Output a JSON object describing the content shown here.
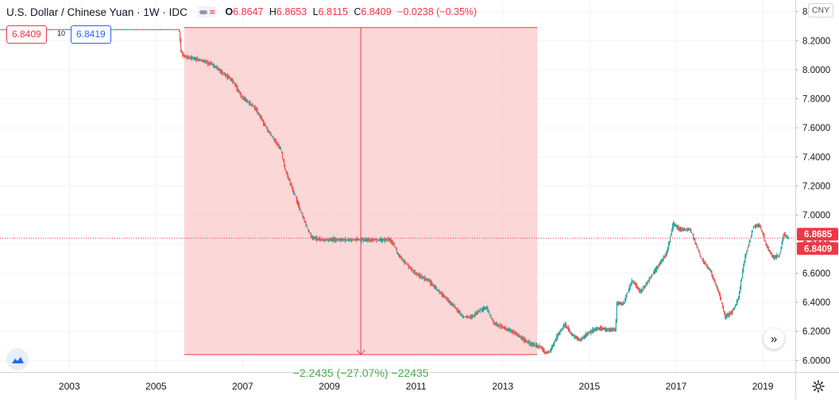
{
  "legend": {
    "symbol": "U.S. Dollar / Chinese Yuan · 1W · IDC",
    "o_key": "O",
    "o_val": "6.8647",
    "h_key": "H",
    "h_val": "6.8653",
    "l_key": "L",
    "l_val": "6.8115",
    "c_key": "C",
    "c_val": "6.8409",
    "change": "−0.0238 (−0.35%)",
    "wave_symbol": "≈"
  },
  "trade": {
    "sell_price": "6.8409",
    "quantity": "10",
    "buy_price": "6.8419"
  },
  "currency_label": "CNY",
  "measure_label": "−2.2435 (−27.07%) −22435",
  "scroll_glyph": "»",
  "icons": {
    "logo": "tradingview-cloud-icon",
    "settings": "gear-icon",
    "scroll": "scroll-to-realtime-icon"
  },
  "colors": {
    "up": "#26a69a",
    "down": "#ef5350",
    "measure_fill": "#fbd0d0",
    "measure_line": "#f23645",
    "measure_text": "#4caf50",
    "price_line": "#f23645"
  },
  "chart_data": {
    "type": "candlestick",
    "title": "U.S. Dollar / Chinese Yuan · 1W · IDC",
    "x_range": [
      2001.4,
      2019.75
    ],
    "y_range": [
      5.92,
      8.48
    ],
    "y_scale": "linear",
    "grid": true,
    "x_ticks": [
      "2003",
      "2005",
      "2007",
      "2009",
      "2011",
      "2013",
      "2015",
      "2017",
      "2019"
    ],
    "y_ticks": [
      "6.0000",
      "6.2000",
      "6.4000",
      "6.6000",
      "6.8000",
      "7.0000",
      "7.2000",
      "7.4000",
      "7.6000",
      "7.8000",
      "8.0000",
      "8.2000",
      "8.4000"
    ],
    "last_price": "6.8409",
    "last_price_value": 6.8409,
    "prev_close": "6.8685",
    "prev_close_value": 6.8685,
    "price_path": [
      [
        2001.4,
        8.277
      ],
      [
        2005.55,
        8.277
      ],
      [
        2005.6,
        8.11
      ],
      [
        2005.7,
        8.09
      ],
      [
        2006.0,
        8.07
      ],
      [
        2006.3,
        8.04
      ],
      [
        2006.5,
        7.99
      ],
      [
        2006.8,
        7.92
      ],
      [
        2007.0,
        7.81
      ],
      [
        2007.3,
        7.74
      ],
      [
        2007.6,
        7.58
      ],
      [
        2007.9,
        7.45
      ],
      [
        2008.0,
        7.31
      ],
      [
        2008.2,
        7.15
      ],
      [
        2008.45,
        6.95
      ],
      [
        2008.6,
        6.85
      ],
      [
        2008.8,
        6.83
      ],
      [
        2009.0,
        6.83
      ],
      [
        2009.5,
        6.83
      ],
      [
        2010.0,
        6.83
      ],
      [
        2010.4,
        6.83
      ],
      [
        2010.5,
        6.8
      ],
      [
        2010.6,
        6.73
      ],
      [
        2010.8,
        6.66
      ],
      [
        2011.0,
        6.6
      ],
      [
        2011.3,
        6.55
      ],
      [
        2011.6,
        6.46
      ],
      [
        2011.9,
        6.37
      ],
      [
        2012.1,
        6.3
      ],
      [
        2012.3,
        6.3
      ],
      [
        2012.5,
        6.35
      ],
      [
        2012.65,
        6.36
      ],
      [
        2012.8,
        6.26
      ],
      [
        2013.0,
        6.23
      ],
      [
        2013.3,
        6.19
      ],
      [
        2013.5,
        6.14
      ],
      [
        2013.7,
        6.11
      ],
      [
        2013.9,
        6.09
      ],
      [
        2014.0,
        6.05
      ],
      [
        2014.1,
        6.06
      ],
      [
        2014.3,
        6.18
      ],
      [
        2014.45,
        6.25
      ],
      [
        2014.6,
        6.18
      ],
      [
        2014.8,
        6.14
      ],
      [
        2015.0,
        6.19
      ],
      [
        2015.2,
        6.22
      ],
      [
        2015.5,
        6.21
      ],
      [
        2015.62,
        6.21
      ],
      [
        2015.65,
        6.39
      ],
      [
        2015.8,
        6.39
      ],
      [
        2016.0,
        6.55
      ],
      [
        2016.2,
        6.47
      ],
      [
        2016.4,
        6.56
      ],
      [
        2016.6,
        6.65
      ],
      [
        2016.8,
        6.74
      ],
      [
        2016.95,
        6.94
      ],
      [
        2017.1,
        6.9
      ],
      [
        2017.35,
        6.9
      ],
      [
        2017.6,
        6.7
      ],
      [
        2017.8,
        6.62
      ],
      [
        2018.0,
        6.47
      ],
      [
        2018.15,
        6.3
      ],
      [
        2018.3,
        6.33
      ],
      [
        2018.45,
        6.42
      ],
      [
        2018.6,
        6.7
      ],
      [
        2018.8,
        6.92
      ],
      [
        2018.95,
        6.93
      ],
      [
        2019.1,
        6.79
      ],
      [
        2019.25,
        6.71
      ],
      [
        2019.4,
        6.72
      ],
      [
        2019.5,
        6.87
      ],
      [
        2019.6,
        6.84
      ]
    ],
    "measure_range": {
      "x_start": 2005.65,
      "x_end": 2013.8,
      "y_start": 8.29,
      "y_end": 6.04
    }
  }
}
